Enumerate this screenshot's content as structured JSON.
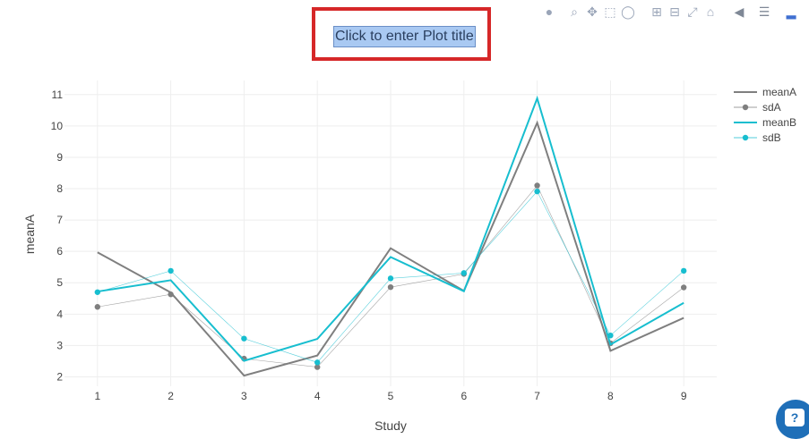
{
  "plot_title_placeholder": "Click to enter Plot title",
  "modebar": {
    "icons": [
      "camera-icon",
      "zoom-icon",
      "pan-icon",
      "box-select-icon",
      "lasso-icon",
      "zoom-in-icon",
      "zoom-out-icon",
      "autoscale-icon",
      "home-icon",
      "hover-closest-icon",
      "hover-compare-icon",
      "plotly-logo-icon"
    ]
  },
  "help_button_label": "?",
  "colors": {
    "series_a": "#7f7f7f",
    "series_b": "#17becf",
    "grid": "#eeeeee",
    "highlight": "#d62728"
  },
  "chart_data": {
    "type": "line",
    "xlabel": "Study",
    "ylabel": "meanA",
    "x": [
      1,
      2,
      3,
      4,
      5,
      6,
      7,
      8,
      9
    ],
    "xlim": [
      0.55,
      9.45
    ],
    "ylim": [
      1.7,
      11.45
    ],
    "yticks": [
      2,
      3,
      4,
      5,
      6,
      7,
      8,
      9,
      10,
      11
    ],
    "grid": true,
    "legend_position": "top-right",
    "series": [
      {
        "name": "meanA",
        "mode": "lines",
        "color": "#7f7f7f",
        "values": [
          5.97,
          4.69,
          2.04,
          2.68,
          6.1,
          4.74,
          10.1,
          2.83,
          3.88
        ]
      },
      {
        "name": "sdA",
        "mode": "lines+markers",
        "color": "#7f7f7f",
        "values": [
          4.23,
          4.63,
          2.58,
          2.31,
          4.86,
          5.28,
          8.1,
          3.07,
          4.85
        ]
      },
      {
        "name": "meanB",
        "mode": "lines",
        "color": "#17becf",
        "values": [
          4.72,
          5.08,
          2.51,
          3.21,
          5.82,
          4.73,
          10.88,
          3.03,
          4.36
        ]
      },
      {
        "name": "sdB",
        "mode": "lines+markers",
        "color": "#17becf",
        "values": [
          4.7,
          5.38,
          3.22,
          2.46,
          5.14,
          5.31,
          7.91,
          3.32,
          5.38
        ]
      }
    ]
  }
}
